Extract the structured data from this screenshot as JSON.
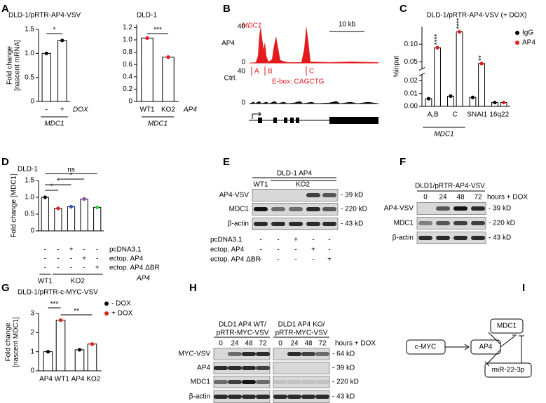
{
  "chart_data": [
    {
      "type": "bar",
      "panel_letter": "A",
      "title": "DLD-1/pRTR-AP4-VSV",
      "ylabel": [
        "Fold change",
        "[nascent mRNA]"
      ],
      "categories": [
        "-",
        "+"
      ],
      "x_note": "DOX",
      "group_label": "MDC1",
      "values": [
        1.0,
        1.27
      ],
      "color": "#000000",
      "ylim": [
        0,
        1.5
      ],
      "yticks": [
        0,
        0.5,
        {
          "value": 1,
          "label": "1.0"
        },
        1.5
      ],
      "significance": [
        "*"
      ]
    },
    {
      "type": "bar",
      "title": "DLD-1",
      "categories": [
        "WT1",
        "KO2"
      ],
      "x_note": "AP4",
      "group_label": "MDC1",
      "values": [
        1.03,
        0.72
      ],
      "color": "#e41a1c",
      "ylim": [
        0,
        1.25
      ],
      "yticks": [
        0,
        0.2,
        0.4,
        0.6,
        0.8,
        {
          "value": 1,
          "label": "1.0"
        },
        1.2
      ],
      "significance": [
        "***"
      ]
    },
    {
      "type": "bar",
      "panel_letter": "C",
      "title": "DLD-1/pRTR-AP4-VSV (+ DOX)",
      "ylabel": "%input",
      "categories": [
        "A,B",
        "C",
        "SNAI1",
        "16q22"
      ],
      "group_label": "MDC1",
      "series": [
        {
          "name": "IgG",
          "color": "#000000",
          "values": [
            0.006,
            0.008,
            0.007,
            0.003
          ]
        },
        {
          "name": "AP4",
          "color": "#e41a1c",
          "values": [
            0.09,
            0.135,
            0.045,
            0.003
          ]
        }
      ],
      "ylim": [
        0,
        0.15
      ],
      "ylim_break": [
        0.025,
        0.03
      ],
      "yticks": [
        {
          "value": 0,
          "label": "0.00"
        },
        0.01,
        0.02,
        0.05,
        {
          "value": 0.1,
          "label": "0.10"
        }
      ],
      "significance": [
        "****",
        "****",
        "**"
      ]
    },
    {
      "type": "bar",
      "panel_letter": "D",
      "title": "DLD-1",
      "ylabel": "Fold change [MDC1]",
      "values": [
        1.0,
        0.67,
        0.72,
        0.95,
        0.7
      ],
      "colors": [
        "#000000",
        "#e41a1c",
        "#3a4fc4",
        "#8e44ad",
        "#2ecc40"
      ],
      "ylim": [
        0,
        1.5
      ],
      "yticks": [
        0,
        0.5,
        {
          "value": 1,
          "label": "1.0"
        },
        1.5
      ],
      "treatments": [
        {
          "label": "pcDNA3.1",
          "marks": [
            "-",
            "-",
            "+",
            "-",
            "-"
          ]
        },
        {
          "label": "ectop. AP4",
          "marks": [
            "-",
            "-",
            "-",
            "+",
            "-"
          ]
        },
        {
          "label": "ectop. AP4 ΔBR",
          "marks": [
            "-",
            "-",
            "-",
            "-",
            "+"
          ]
        }
      ],
      "groups": [
        "WT1",
        "KO2"
      ],
      "x_note": "AP4",
      "significance": [
        "*",
        "*",
        "*",
        "ns"
      ]
    },
    {
      "type": "bar",
      "panel_letter": "G",
      "title": "DLD-1/pRTR-c-MYC-VSV",
      "ylabel": [
        "Fold change",
        "[nascent MDC1]"
      ],
      "categories": [
        "AP4 WT1",
        "AP4 KO2"
      ],
      "series": [
        {
          "name": "- DOX",
          "color": "#000000",
          "values": [
            1.0,
            1.1
          ]
        },
        {
          "name": "+ DOX",
          "color": "#e41a1c",
          "values": [
            2.65,
            1.4
          ]
        }
      ],
      "ylim": [
        0,
        3
      ],
      "yticks": [
        0,
        1,
        2,
        3
      ],
      "significance": [
        "***",
        "**"
      ]
    }
  ],
  "panels": {
    "B": {
      "letter": "B",
      "gene": "MDC1",
      "scale": "10 kb",
      "tracks": [
        {
          "name": "AP4",
          "top": "40",
          "bottom": "0"
        },
        {
          "name": "Ctrl.",
          "top": "40",
          "bottom": "0"
        }
      ],
      "peaks": [
        "A",
        "B",
        "C"
      ],
      "ebox": "E-box: CAGCTG"
    },
    "E": {
      "letter": "E",
      "header": "DLD-1 AP4",
      "lane_groups": [
        "WT1",
        "KO2"
      ],
      "rows": [
        {
          "label": "AP4-VSV",
          "size": "- 39 kD"
        },
        {
          "label": "MDC1",
          "size": "- 220 kD"
        },
        {
          "label": "β-actin",
          "size": "- 43 kD"
        }
      ],
      "treatments": [
        {
          "label": "pcDNA3.1",
          "marks": [
            "-",
            "-",
            "+",
            "-",
            "-"
          ]
        },
        {
          "label": "ectop. AP4",
          "marks": [
            "-",
            "-",
            "-",
            "+",
            "-"
          ]
        },
        {
          "label": "ectop. AP4 ΔBR",
          "marks": [
            "-",
            "-",
            "-",
            "-",
            "+"
          ]
        }
      ]
    },
    "F": {
      "letter": "F",
      "header": "DLD1/pRTR-AP4-VSV",
      "times": [
        "0",
        "24",
        "48",
        "72"
      ],
      "time_note": "hours + DOX",
      "rows": [
        {
          "label": "AP4-VSV",
          "size": "- 39 kD"
        },
        {
          "label": "MDC1",
          "size": "- 220 kD"
        },
        {
          "label": "β-actin",
          "size": "- 43 kD"
        }
      ]
    },
    "H": {
      "letter": "H",
      "time_note": "hours + DOX",
      "blots": [
        {
          "header": [
            "DLD1 AP4 WT/",
            "pRTR-MYC-VSV"
          ],
          "times": [
            "0",
            "24",
            "48",
            "72"
          ]
        },
        {
          "header": [
            "DLD1 AP4 KO/",
            "pRTR-MYC-VSV"
          ],
          "times": [
            "0",
            "24",
            "48",
            "72"
          ]
        }
      ],
      "rows": [
        {
          "label": "MYC-VSV",
          "size": "- 64 kD"
        },
        {
          "label": "AP4",
          "size": "- 39 kD"
        },
        {
          "label": "MDC1",
          "size": "- 220 kD"
        },
        {
          "label": "β-actin",
          "size": "- 43 kD"
        }
      ]
    },
    "I": {
      "letter": "I",
      "nodes": [
        "c-MYC",
        "AP4",
        "MDC1",
        "miR-22-3p"
      ]
    }
  }
}
